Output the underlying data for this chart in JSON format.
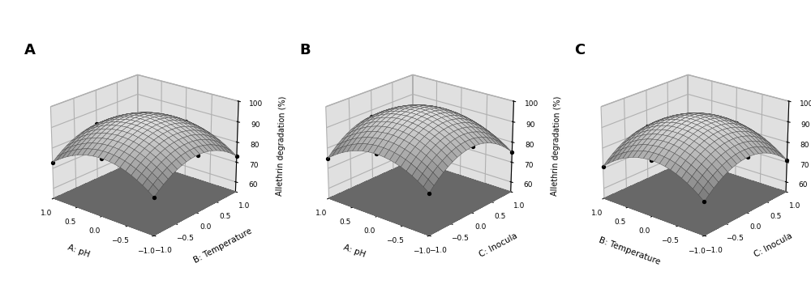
{
  "panels": [
    {
      "label": "A",
      "xlabel": "A: pH",
      "ylabel": "B: Temperature",
      "zlabel": "Allethrin degradation (%)",
      "coeffs": [
        93.0,
        0.0,
        0.0,
        -10.0,
        -10.0,
        0.0
      ],
      "zlim": [
        55,
        100
      ],
      "zticks": [
        60,
        70,
        80,
        90,
        100
      ],
      "xlim": [
        1,
        -1
      ],
      "ylim": [
        -1,
        1
      ]
    },
    {
      "label": "B",
      "xlabel": "A: pH",
      "ylabel": "C: Inocula",
      "zlabel": "Allethrin degradation (%)",
      "coeffs": [
        97.0,
        0.0,
        0.0,
        -10.0,
        -12.0,
        0.0
      ],
      "zlim": [
        55,
        100
      ],
      "zticks": [
        60,
        70,
        80,
        90,
        100
      ],
      "xlim": [
        1,
        -1
      ],
      "ylim": [
        -1,
        1
      ]
    },
    {
      "label": "C",
      "xlabel": "B: Temperature",
      "ylabel": "C: Inocula",
      "zlabel": "Allethrin degradation (%)",
      "coeffs": [
        93.0,
        0.0,
        0.0,
        -11.0,
        -11.0,
        0.0
      ],
      "zlim": [
        55,
        100
      ],
      "zticks": [
        60,
        70,
        80,
        90,
        100
      ],
      "xlim": [
        1,
        -1
      ],
      "ylim": [
        -1,
        1
      ]
    }
  ],
  "floor_color": [
    0.53,
    0.53,
    0.53,
    1.0
  ],
  "pane_color": [
    0.88,
    0.88,
    0.88,
    1.0
  ],
  "pane_edge_color": "#aaaaaa",
  "background_color": "#ffffff",
  "elev": 22,
  "azim": -50,
  "n_grid": 20,
  "label_fontsize": 13,
  "tick_fontsize": 6.5,
  "axis_label_fontsize": 7.5,
  "zlabel_fontsize": 7.0,
  "contour_levels": 5,
  "contour_color": "white",
  "contour_lw": 0.8,
  "marker_size": 8,
  "surface_edge_lw": 0.3,
  "surface_edge_color": "#444444"
}
